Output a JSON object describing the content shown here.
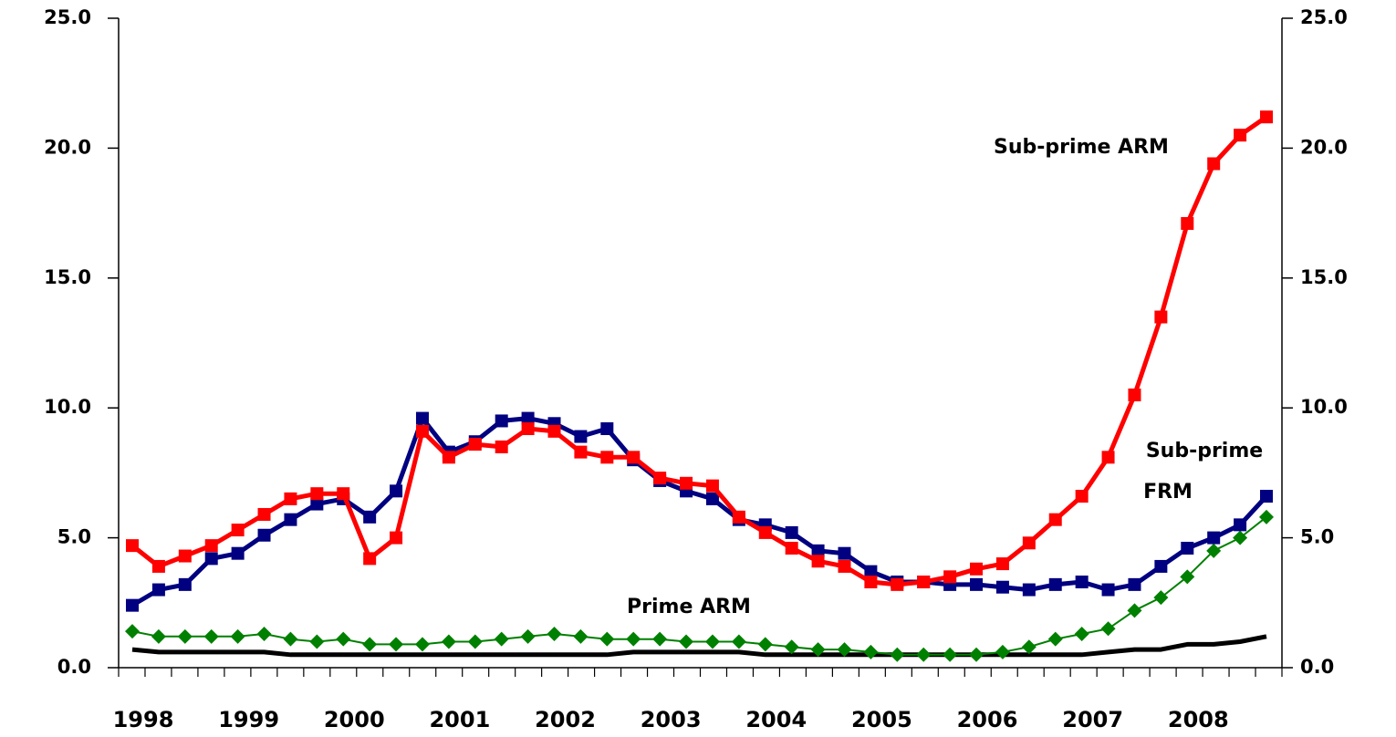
{
  "chart_data": {
    "type": "line",
    "categories": [
      "1998",
      null,
      null,
      null,
      "1999",
      null,
      null,
      null,
      "2000",
      null,
      null,
      null,
      "2001",
      null,
      null,
      null,
      "2002",
      null,
      null,
      null,
      "2003",
      null,
      null,
      null,
      "2004",
      null,
      null,
      null,
      "2005",
      null,
      null,
      null,
      "2006",
      null,
      null,
      null,
      "2007",
      null,
      null,
      null,
      "2008",
      null,
      null,
      null
    ],
    "series": [
      {
        "color": "#ff0000",
        "marker": "square",
        "values": [
          4.7,
          3.9,
          4.3,
          4.7,
          5.3,
          5.9,
          6.5,
          6.7,
          6.7,
          4.2,
          5.0,
          9.1,
          8.1,
          8.6,
          8.5,
          9.2,
          9.1,
          8.3,
          8.1,
          8.1,
          7.3,
          7.1,
          7.0,
          5.8,
          5.2,
          4.6,
          4.1,
          3.9,
          3.3,
          3.2,
          3.3,
          3.5,
          3.8,
          4.0,
          4.8,
          5.7,
          6.6,
          8.1,
          10.5,
          13.5,
          17.1,
          19.4,
          20.5,
          21.2
        ]
      },
      {
        "color": "#000080",
        "marker": "square",
        "values": [
          2.4,
          3.0,
          3.2,
          4.2,
          4.4,
          5.1,
          5.7,
          6.3,
          6.5,
          5.8,
          6.8,
          9.6,
          8.3,
          8.7,
          9.5,
          9.6,
          9.4,
          8.9,
          9.2,
          8.0,
          7.2,
          6.8,
          6.5,
          5.7,
          5.5,
          5.2,
          4.5,
          4.4,
          3.7,
          3.3,
          3.3,
          3.2,
          3.2,
          3.1,
          3.0,
          3.2,
          3.3,
          3.0,
          3.2,
          3.9,
          4.6,
          5.0,
          5.5,
          6.6
        ]
      },
      {
        "color": "#008000",
        "marker": "diamond",
        "values": [
          1.4,
          1.2,
          1.2,
          1.2,
          1.2,
          1.3,
          1.1,
          1.0,
          1.1,
          0.9,
          0.9,
          0.9,
          1.0,
          1.0,
          1.1,
          1.2,
          1.3,
          1.2,
          1.1,
          1.1,
          1.1,
          1.0,
          1.0,
          1.0,
          0.9,
          0.8,
          0.7,
          0.7,
          0.6,
          0.5,
          0.5,
          0.5,
          0.5,
          0.6,
          0.8,
          1.1,
          1.3,
          1.5,
          2.2,
          2.7,
          3.5,
          4.5,
          5.0,
          5.8
        ]
      },
      {
        "color": "#000000",
        "values": [
          0.7,
          0.6,
          0.6,
          0.6,
          0.6,
          0.6,
          0.5,
          0.5,
          0.5,
          0.5,
          0.5,
          0.5,
          0.5,
          0.5,
          0.5,
          0.5,
          0.5,
          0.5,
          0.5,
          0.6,
          0.6,
          0.6,
          0.6,
          0.6,
          0.5,
          0.5,
          0.5,
          0.5,
          0.5,
          0.5,
          0.5,
          0.5,
          0.5,
          0.5,
          0.5,
          0.5,
          0.5,
          0.6,
          0.7,
          0.7,
          0.9,
          0.9,
          1.0,
          1.2
        ]
      }
    ],
    "annotations": [
      "Sub-prime ARM",
      "Sub-prime",
      "FRM",
      "Prime ARM"
    ],
    "ylim": [
      0,
      25
    ],
    "yticks": [
      {
        "value": 0,
        "label": "0.0"
      },
      {
        "value": 5,
        "label": "5.0"
      },
      {
        "value": 10,
        "label": "10.0"
      },
      {
        "value": 15,
        "label": "15.0"
      },
      {
        "value": 20,
        "label": "20.0"
      },
      {
        "value": 25,
        "label": "25.0"
      }
    ],
    "y2lim": [
      0,
      25
    ],
    "y2ticks": [
      {
        "value": 0,
        "label": "0.0"
      },
      {
        "value": 5,
        "label": "5.0"
      },
      {
        "value": 10,
        "label": "10.0"
      },
      {
        "value": 15,
        "label": "15.0"
      },
      {
        "value": 20,
        "label": "20.0"
      },
      {
        "value": 25,
        "label": "25.0"
      }
    ]
  }
}
